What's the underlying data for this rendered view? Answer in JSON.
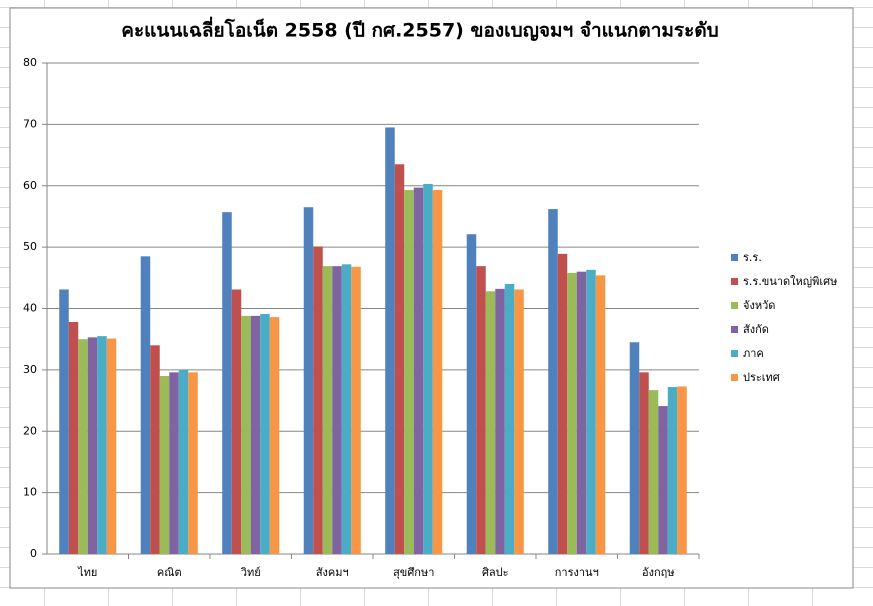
{
  "chart_data": {
    "type": "bar",
    "title": "คะแนนเฉลี่ยโอเน็ต 2558 (ปี กศ.2557) ของเบญจมฯ จำแนกตามระดับ",
    "categories": [
      "ไทย",
      "คณิต",
      "วิทย์",
      "สังคมฯ",
      "สุขศึกษา",
      "ศิลปะ",
      "การงานฯ",
      "อังกฤษ"
    ],
    "series": [
      {
        "name": "ร.ร.",
        "color": "#4f81bd",
        "values": [
          43.1,
          48.5,
          55.7,
          56.5,
          69.5,
          52.1,
          56.2,
          34.5
        ]
      },
      {
        "name": "ร.ร.ขนาดใหญ่พิเศษ",
        "color": "#c0504d",
        "values": [
          37.8,
          34.0,
          43.1,
          50.1,
          63.5,
          46.9,
          48.9,
          29.6
        ]
      },
      {
        "name": "จังหวัด",
        "color": "#9bbb59",
        "values": [
          35.0,
          29.0,
          38.8,
          46.9,
          59.3,
          42.8,
          45.8,
          26.7
        ]
      },
      {
        "name": "สังกัด",
        "color": "#8064a2",
        "values": [
          35.3,
          29.6,
          38.8,
          46.9,
          59.7,
          43.2,
          46.0,
          24.1
        ]
      },
      {
        "name": "ภาค",
        "color": "#4bacc6",
        "values": [
          35.5,
          30.0,
          39.1,
          47.2,
          60.3,
          44.0,
          46.3,
          27.2
        ]
      },
      {
        "name": "ประเทศ",
        "color": "#f79646",
        "values": [
          35.1,
          29.6,
          38.6,
          46.8,
          59.3,
          43.1,
          45.4,
          27.3
        ]
      }
    ],
    "ylim": [
      0,
      80
    ],
    "yticks": [
      0,
      10,
      20,
      30,
      40,
      50,
      60,
      70,
      80
    ],
    "grid": true,
    "legend": "right"
  }
}
